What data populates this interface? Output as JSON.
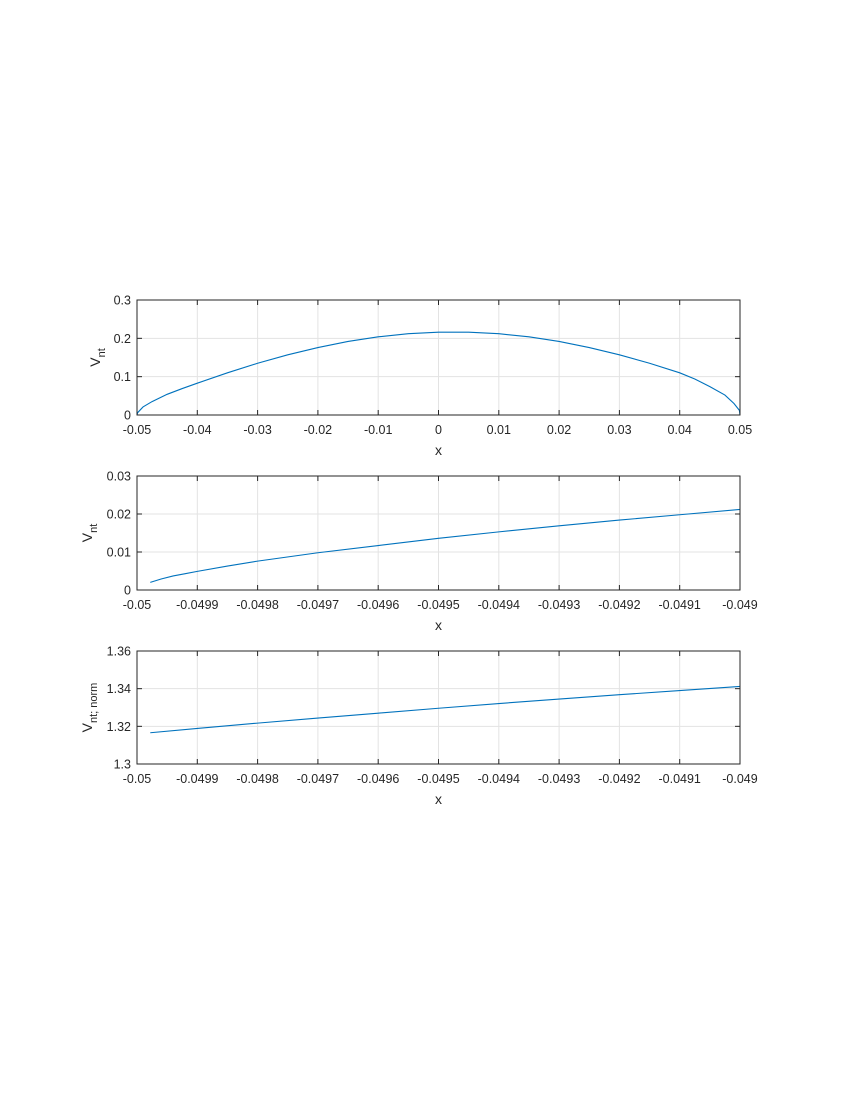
{
  "colors": {
    "series": "#0072bd",
    "axes": "#262626",
    "grid": "#e3e3e3",
    "background": "#ffffff"
  },
  "chart_data": [
    {
      "type": "line",
      "title": "",
      "xlabel": "x",
      "ylabel": "V",
      "ylabel_sub": "nt",
      "xlim": [
        -0.05,
        0.05
      ],
      "ylim": [
        0,
        0.3
      ],
      "grid": true,
      "xticks": [
        -0.05,
        -0.04,
        -0.03,
        -0.02,
        -0.01,
        0,
        0.01,
        0.02,
        0.03,
        0.04,
        0.05
      ],
      "xtick_labels": [
        "-0.05",
        "-0.04",
        "-0.03",
        "-0.02",
        "-0.01",
        "0",
        "0.01",
        "0.02",
        "0.03",
        "0.04",
        "0.05"
      ],
      "yticks": [
        0,
        0.1,
        0.2,
        0.3
      ],
      "ytick_labels": [
        "0",
        "0.1",
        "0.2",
        "0.3"
      ],
      "series": [
        {
          "x": [
            -0.05,
            -0.0499,
            -0.049,
            -0.0475,
            -0.045,
            -0.0425,
            -0.04,
            -0.035,
            -0.03,
            -0.025,
            -0.02,
            -0.015,
            -0.01,
            -0.005,
            0,
            0.005,
            0.01,
            0.015,
            0.02,
            0.025,
            0.03,
            0.035,
            0.04,
            0.0425,
            0.045,
            0.0475,
            0.049,
            0.0499,
            0.05
          ],
          "y": [
            0,
            0.006,
            0.021,
            0.035,
            0.054,
            0.069,
            0.083,
            0.11,
            0.135,
            0.157,
            0.176,
            0.192,
            0.204,
            0.212,
            0.216,
            0.216,
            0.212,
            0.204,
            0.192,
            0.176,
            0.157,
            0.135,
            0.11,
            0.094,
            0.074,
            0.052,
            0.03,
            0.012,
            0
          ]
        }
      ]
    },
    {
      "type": "line",
      "title": "",
      "xlabel": "x",
      "ylabel": "V",
      "ylabel_sub": "nt",
      "xlim": [
        -0.05,
        -0.049
      ],
      "ylim": [
        0,
        0.03
      ],
      "grid": true,
      "xticks": [
        -0.05,
        -0.0499,
        -0.0498,
        -0.0497,
        -0.0496,
        -0.0495,
        -0.0494,
        -0.0493,
        -0.0492,
        -0.0491,
        -0.049
      ],
      "xtick_labels": [
        "-0.05",
        "-0.0499",
        "-0.0498",
        "-0.0497",
        "-0.0496",
        "-0.0495",
        "-0.0494",
        "-0.0493",
        "-0.0492",
        "-0.0491",
        "-0.049"
      ],
      "yticks": [
        0,
        0.01,
        0.02,
        0.03
      ],
      "ytick_labels": [
        "0",
        "0.01",
        "0.02",
        "0.03"
      ],
      "series": [
        {
          "x": [
            -0.049978,
            -0.04996,
            -0.04994,
            -0.04992,
            -0.0499,
            -0.04985,
            -0.0498,
            -0.0497,
            -0.0496,
            -0.0495,
            -0.0494,
            -0.0493,
            -0.0492,
            -0.0491,
            -0.049
          ],
          "y": [
            0.002,
            0.0029,
            0.0037,
            0.0043,
            0.0049,
            0.0063,
            0.0076,
            0.0098,
            0.0117,
            0.0136,
            0.0153,
            0.0169,
            0.0184,
            0.0198,
            0.0212
          ]
        }
      ]
    },
    {
      "type": "line",
      "title": "",
      "xlabel": "x",
      "ylabel": "V",
      "ylabel_sub": "nt; norm",
      "xlim": [
        -0.05,
        -0.049
      ],
      "ylim": [
        1.3,
        1.36
      ],
      "grid": true,
      "xticks": [
        -0.05,
        -0.0499,
        -0.0498,
        -0.0497,
        -0.0496,
        -0.0495,
        -0.0494,
        -0.0493,
        -0.0492,
        -0.0491,
        -0.049
      ],
      "xtick_labels": [
        "-0.05",
        "-0.0499",
        "-0.0498",
        "-0.0497",
        "-0.0496",
        "-0.0495",
        "-0.0494",
        "-0.0493",
        "-0.0492",
        "-0.0491",
        "-0.049"
      ],
      "yticks": [
        1.3,
        1.32,
        1.34,
        1.36
      ],
      "ytick_labels": [
        "1.3",
        "1.32",
        "1.34",
        "1.36"
      ],
      "series": [
        {
          "x": [
            -0.049978,
            -0.0499,
            -0.0498,
            -0.0497,
            -0.0496,
            -0.0495,
            -0.0494,
            -0.0493,
            -0.0492,
            -0.0491,
            -0.049
          ],
          "y": [
            1.3166,
            1.3189,
            1.3217,
            1.3244,
            1.327,
            1.3296,
            1.3321,
            1.3345,
            1.3368,
            1.339,
            1.3412
          ]
        }
      ]
    }
  ]
}
